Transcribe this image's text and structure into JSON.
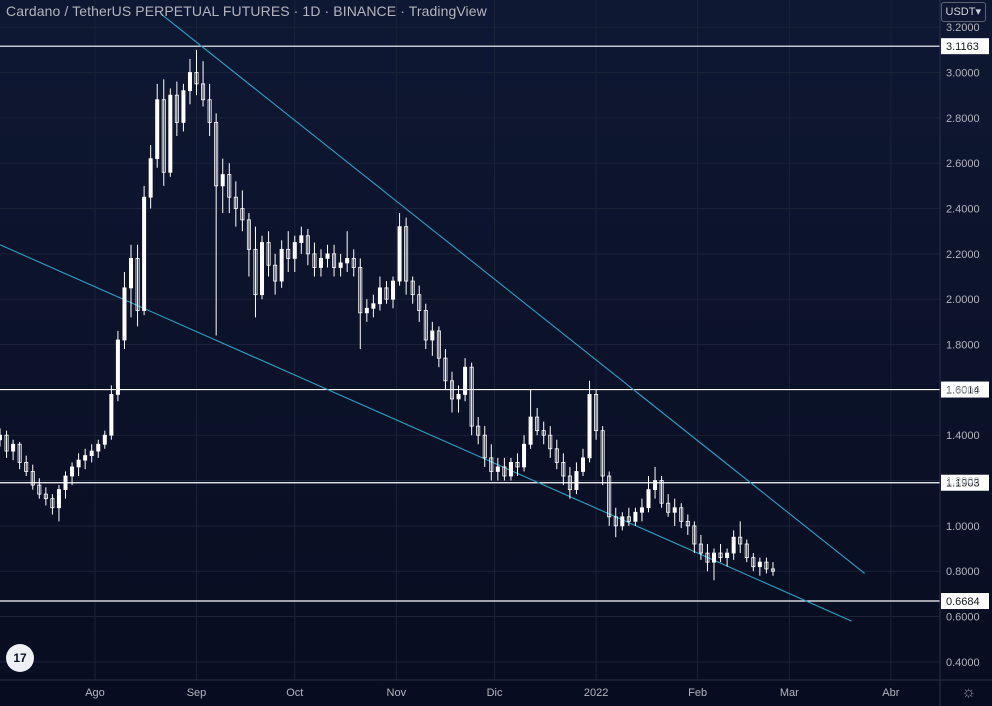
{
  "header": {
    "title": "Cardano / TetherUS PERPETUAL FUTURES · 1D · BINANCE · TradingView",
    "currency": "USDT",
    "currency_caret": "▾",
    "logo_text": "17",
    "settings_glyph": "☼"
  },
  "colors": {
    "candle": "#ffffff",
    "trendline": "#2aa0c4",
    "level": "#ffffff",
    "grid": "#1b2338",
    "axis_text": "#b2b5be",
    "background": "#0c1229"
  },
  "chart_data": {
    "type": "candlestick",
    "title": "Cardano / TetherUS PERPETUAL FUTURES · 1D · BINANCE · TradingView",
    "y_axis": {
      "ticks": [
        "3.2000",
        "3.0000",
        "2.8000",
        "2.6000",
        "2.4000",
        "2.2000",
        "2.0000",
        "1.8000",
        "1.6000",
        "1.4000",
        "1.2000",
        "1.0000",
        "0.8000",
        "0.6000",
        "0.4000"
      ],
      "range": [
        0.32,
        3.32
      ]
    },
    "x_axis": {
      "ticks": [
        {
          "label": "Ago",
          "date": "2021-08-01"
        },
        {
          "label": "Sep",
          "date": "2021-09-01"
        },
        {
          "label": "Oct",
          "date": "2021-10-01"
        },
        {
          "label": "Nov",
          "date": "2021-11-01"
        },
        {
          "label": "Dic",
          "date": "2021-12-01"
        },
        {
          "label": "2022",
          "date": "2022-01-01"
        },
        {
          "label": "Feb",
          "date": "2022-02-01"
        },
        {
          "label": "Mar",
          "date": "2022-03-01"
        },
        {
          "label": "Abr",
          "date": "2022-04-01"
        }
      ],
      "range": [
        "2021-07-03",
        "2022-04-16"
      ]
    },
    "horizontal_levels": [
      {
        "value": 3.1163,
        "label": "3.1163"
      },
      {
        "value": 1.6014,
        "label": "1.6014"
      },
      {
        "value": 1.1903,
        "label": "1.1903"
      },
      {
        "value": 0.6684,
        "label": "0.6684"
      }
    ],
    "trendlines": [
      {
        "name": "upper",
        "from": {
          "date": "2021-08-21",
          "value": 3.26
        },
        "to": {
          "date": "2022-03-24",
          "value": 0.79
        }
      },
      {
        "name": "lower",
        "from": {
          "date": "2021-07-03",
          "value": 2.24
        },
        "to": {
          "date": "2022-03-20",
          "value": 0.58
        }
      }
    ],
    "candles": [
      [
        "2021-07-03",
        1.38,
        1.43,
        1.35,
        1.4
      ],
      [
        "2021-07-05",
        1.4,
        1.42,
        1.3,
        1.33
      ],
      [
        "2021-07-07",
        1.33,
        1.38,
        1.29,
        1.36
      ],
      [
        "2021-07-09",
        1.36,
        1.37,
        1.25,
        1.28
      ],
      [
        "2021-07-11",
        1.28,
        1.31,
        1.22,
        1.24
      ],
      [
        "2021-07-13",
        1.24,
        1.27,
        1.16,
        1.18
      ],
      [
        "2021-07-15",
        1.18,
        1.21,
        1.12,
        1.14
      ],
      [
        "2021-07-17",
        1.14,
        1.17,
        1.09,
        1.12
      ],
      [
        "2021-07-19",
        1.12,
        1.14,
        1.05,
        1.08
      ],
      [
        "2021-07-21",
        1.08,
        1.18,
        1.02,
        1.16
      ],
      [
        "2021-07-23",
        1.16,
        1.24,
        1.12,
        1.22
      ],
      [
        "2021-07-25",
        1.22,
        1.28,
        1.18,
        1.26
      ],
      [
        "2021-07-27",
        1.26,
        1.32,
        1.22,
        1.29
      ],
      [
        "2021-07-29",
        1.29,
        1.34,
        1.25,
        1.31
      ],
      [
        "2021-07-31",
        1.31,
        1.36,
        1.28,
        1.33
      ],
      [
        "2021-08-02",
        1.33,
        1.38,
        1.3,
        1.36
      ],
      [
        "2021-08-04",
        1.36,
        1.42,
        1.34,
        1.4
      ],
      [
        "2021-08-06",
        1.4,
        1.62,
        1.38,
        1.58
      ],
      [
        "2021-08-08",
        1.58,
        1.86,
        1.55,
        1.82
      ],
      [
        "2021-08-10",
        1.82,
        2.12,
        1.78,
        2.05
      ],
      [
        "2021-08-12",
        2.05,
        2.24,
        1.92,
        2.18
      ],
      [
        "2021-08-14",
        2.18,
        2.24,
        1.88,
        1.95
      ],
      [
        "2021-08-16",
        1.95,
        2.5,
        1.93,
        2.45
      ],
      [
        "2021-08-18",
        2.45,
        2.68,
        2.4,
        2.62
      ],
      [
        "2021-08-20",
        2.62,
        2.95,
        2.58,
        2.88
      ],
      [
        "2021-08-22",
        2.88,
        2.97,
        2.5,
        2.56
      ],
      [
        "2021-08-24",
        2.56,
        2.93,
        2.54,
        2.9
      ],
      [
        "2021-08-26",
        2.9,
        2.96,
        2.72,
        2.78
      ],
      [
        "2021-08-28",
        2.78,
        2.95,
        2.74,
        2.92
      ],
      [
        "2021-08-30",
        2.92,
        3.06,
        2.86,
        3.0
      ],
      [
        "2021-09-01",
        3.0,
        3.1,
        2.9,
        2.95
      ],
      [
        "2021-09-03",
        2.95,
        3.05,
        2.85,
        2.88
      ],
      [
        "2021-09-05",
        2.88,
        2.95,
        2.72,
        2.78
      ],
      [
        "2021-09-07",
        2.78,
        2.82,
        1.84,
        2.5
      ],
      [
        "2021-09-09",
        2.5,
        2.62,
        2.38,
        2.55
      ],
      [
        "2021-09-11",
        2.55,
        2.6,
        2.38,
        2.45
      ],
      [
        "2021-09-13",
        2.45,
        2.52,
        2.32,
        2.4
      ],
      [
        "2021-09-15",
        2.4,
        2.48,
        2.3,
        2.35
      ],
      [
        "2021-09-17",
        2.35,
        2.38,
        2.1,
        2.22
      ],
      [
        "2021-09-19",
        2.22,
        2.32,
        1.92,
        2.02
      ],
      [
        "2021-09-21",
        2.02,
        2.28,
        2.0,
        2.25
      ],
      [
        "2021-09-23",
        2.25,
        2.3,
        2.1,
        2.15
      ],
      [
        "2021-09-25",
        2.15,
        2.2,
        2.02,
        2.08
      ],
      [
        "2021-09-27",
        2.08,
        2.26,
        2.05,
        2.22
      ],
      [
        "2021-09-29",
        2.22,
        2.3,
        2.12,
        2.18
      ],
      [
        "2021-10-01",
        2.18,
        2.28,
        2.12,
        2.25
      ],
      [
        "2021-10-03",
        2.25,
        2.32,
        2.2,
        2.28
      ],
      [
        "2021-10-05",
        2.28,
        2.31,
        2.15,
        2.2
      ],
      [
        "2021-10-07",
        2.2,
        2.25,
        2.1,
        2.14
      ],
      [
        "2021-10-09",
        2.14,
        2.22,
        2.1,
        2.18
      ],
      [
        "2021-10-11",
        2.18,
        2.24,
        2.14,
        2.2
      ],
      [
        "2021-10-13",
        2.2,
        2.24,
        2.1,
        2.14
      ],
      [
        "2021-10-15",
        2.14,
        2.2,
        2.1,
        2.16
      ],
      [
        "2021-10-17",
        2.16,
        2.3,
        2.12,
        2.18
      ],
      [
        "2021-10-19",
        2.18,
        2.22,
        2.1,
        2.14
      ],
      [
        "2021-10-21",
        2.14,
        2.18,
        1.78,
        1.94
      ],
      [
        "2021-10-23",
        1.94,
        2.0,
        1.9,
        1.96
      ],
      [
        "2021-10-25",
        1.96,
        2.02,
        1.92,
        1.98
      ],
      [
        "2021-10-27",
        1.98,
        2.1,
        1.95,
        2.05
      ],
      [
        "2021-10-29",
        2.05,
        2.08,
        1.98,
        2.0
      ],
      [
        "2021-10-31",
        2.0,
        2.1,
        1.96,
        2.08
      ],
      [
        "2021-11-02",
        2.08,
        2.38,
        2.06,
        2.32
      ],
      [
        "2021-11-04",
        2.32,
        2.36,
        2.02,
        2.08
      ],
      [
        "2021-11-06",
        2.08,
        2.1,
        1.98,
        2.02
      ],
      [
        "2021-11-08",
        2.02,
        2.06,
        1.9,
        1.95
      ],
      [
        "2021-11-10",
        1.95,
        1.98,
        1.78,
        1.82
      ],
      [
        "2021-11-12",
        1.82,
        1.9,
        1.75,
        1.86
      ],
      [
        "2021-11-14",
        1.86,
        1.88,
        1.7,
        1.74
      ],
      [
        "2021-11-16",
        1.74,
        1.78,
        1.6,
        1.64
      ],
      [
        "2021-11-18",
        1.64,
        1.68,
        1.5,
        1.56
      ],
      [
        "2021-11-20",
        1.56,
        1.62,
        1.5,
        1.58
      ],
      [
        "2021-11-22",
        1.58,
        1.74,
        1.55,
        1.7
      ],
      [
        "2021-11-24",
        1.7,
        1.72,
        1.4,
        1.44
      ],
      [
        "2021-11-26",
        1.44,
        1.48,
        1.36,
        1.4
      ],
      [
        "2021-11-28",
        1.4,
        1.44,
        1.26,
        1.3
      ],
      [
        "2021-11-30",
        1.3,
        1.36,
        1.2,
        1.24
      ],
      [
        "2021-12-02",
        1.24,
        1.3,
        1.2,
        1.26
      ],
      [
        "2021-12-04",
        1.26,
        1.3,
        1.2,
        1.22
      ],
      [
        "2021-12-06",
        1.22,
        1.3,
        1.2,
        1.28
      ],
      [
        "2021-12-08",
        1.28,
        1.32,
        1.22,
        1.26
      ],
      [
        "2021-12-10",
        1.26,
        1.4,
        1.24,
        1.36
      ],
      [
        "2021-12-12",
        1.36,
        1.6,
        1.34,
        1.48
      ],
      [
        "2021-12-14",
        1.48,
        1.52,
        1.4,
        1.42
      ],
      [
        "2021-12-16",
        1.42,
        1.46,
        1.36,
        1.4
      ],
      [
        "2021-12-18",
        1.4,
        1.44,
        1.3,
        1.34
      ],
      [
        "2021-12-20",
        1.34,
        1.38,
        1.25,
        1.28
      ],
      [
        "2021-12-22",
        1.28,
        1.32,
        1.18,
        1.22
      ],
      [
        "2021-12-24",
        1.22,
        1.26,
        1.12,
        1.16
      ],
      [
        "2021-12-26",
        1.16,
        1.28,
        1.14,
        1.24
      ],
      [
        "2021-12-28",
        1.24,
        1.34,
        1.22,
        1.3
      ],
      [
        "2021-12-30",
        1.3,
        1.64,
        1.28,
        1.58
      ],
      [
        "2022-01-01",
        1.58,
        1.6,
        1.38,
        1.42
      ],
      [
        "2022-01-03",
        1.42,
        1.44,
        1.18,
        1.22
      ],
      [
        "2022-01-05",
        1.22,
        1.24,
        1.0,
        1.04
      ],
      [
        "2022-01-07",
        1.04,
        1.08,
        0.95,
        1.0
      ],
      [
        "2022-01-09",
        1.0,
        1.06,
        0.98,
        1.04
      ],
      [
        "2022-01-11",
        1.04,
        1.08,
        1.0,
        1.02
      ],
      [
        "2022-01-13",
        1.02,
        1.08,
        1.0,
        1.06
      ],
      [
        "2022-01-15",
        1.06,
        1.12,
        1.02,
        1.08
      ],
      [
        "2022-01-17",
        1.08,
        1.22,
        1.06,
        1.16
      ],
      [
        "2022-01-19",
        1.16,
        1.26,
        1.12,
        1.2
      ],
      [
        "2022-01-21",
        1.2,
        1.22,
        1.08,
        1.1
      ],
      [
        "2022-01-23",
        1.1,
        1.14,
        1.04,
        1.06
      ],
      [
        "2022-01-25",
        1.06,
        1.12,
        1.0,
        1.08
      ],
      [
        "2022-01-27",
        1.08,
        1.1,
        0.99,
        1.02
      ],
      [
        "2022-01-29",
        1.02,
        1.05,
        0.96,
        1.0
      ],
      [
        "2022-01-31",
        1.0,
        1.02,
        0.88,
        0.92
      ],
      [
        "2022-02-02",
        0.92,
        0.96,
        0.85,
        0.88
      ],
      [
        "2022-02-04",
        0.88,
        0.92,
        0.8,
        0.84
      ],
      [
        "2022-02-06",
        0.84,
        0.9,
        0.76,
        0.88
      ],
      [
        "2022-02-08",
        0.88,
        0.92,
        0.84,
        0.86
      ],
      [
        "2022-02-10",
        0.86,
        0.9,
        0.82,
        0.88
      ],
      [
        "2022-02-12",
        0.88,
        0.98,
        0.85,
        0.95
      ],
      [
        "2022-02-14",
        0.95,
        1.02,
        0.88,
        0.92
      ],
      [
        "2022-02-16",
        0.92,
        0.94,
        0.84,
        0.86
      ],
      [
        "2022-02-18",
        0.86,
        0.88,
        0.8,
        0.82
      ],
      [
        "2022-02-20",
        0.82,
        0.86,
        0.78,
        0.84
      ],
      [
        "2022-02-22",
        0.84,
        0.86,
        0.79,
        0.81
      ],
      [
        "2022-02-24",
        0.81,
        0.84,
        0.78,
        0.8
      ]
    ]
  }
}
